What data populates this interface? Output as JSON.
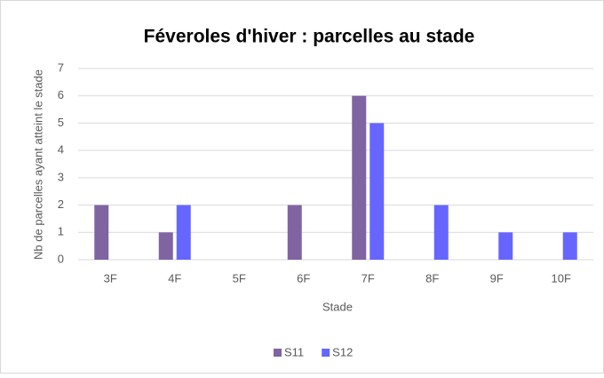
{
  "chart_data": {
    "type": "bar",
    "title": "Féveroles d'hiver : parcelles au stade",
    "x_label": "Stade",
    "y_label": "Nb de parcelles ayant atteint le stade",
    "categories": [
      "3F",
      "4F",
      "5F",
      "6F",
      "7F",
      "8F",
      "9F",
      "10F"
    ],
    "series": [
      {
        "name": "S11",
        "color": "#8064a2",
        "values": [
          2,
          1,
          0,
          2,
          6,
          0,
          0,
          0
        ]
      },
      {
        "name": "S12",
        "color": "#6666ff",
        "values": [
          0,
          2,
          0,
          0,
          5,
          2,
          1,
          1
        ]
      }
    ],
    "ylim": [
      0,
      7
    ],
    "yticks": [
      0,
      1,
      2,
      3,
      4,
      5,
      6,
      7
    ],
    "grid": true,
    "legend": "bottom"
  }
}
